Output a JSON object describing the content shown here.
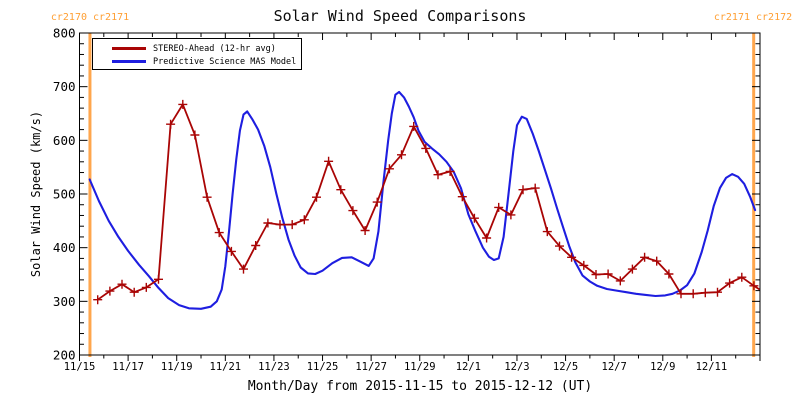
{
  "chart_data": {
    "type": "line",
    "title": "Solar Wind Speed Comparisons",
    "xlabel": "Month/Day from 2015-11-15 to 2015-12-12 (UT)",
    "ylabel": "Solar Wind Speed (km/s)",
    "ylim": [
      200,
      800
    ],
    "xlim_days": [
      0,
      28
    ],
    "x_epoch_day0": "2015-11-15 00:00 UT",
    "grid": false,
    "legend_position": "top-left-inside",
    "x_tick_days": [
      0,
      2,
      4,
      6,
      8,
      10,
      12,
      14,
      16,
      18,
      20,
      22,
      24,
      26
    ],
    "x_tick_labels": [
      "11/15",
      "11/17",
      "11/19",
      "11/21",
      "11/23",
      "11/25",
      "11/27",
      "11/29",
      "12/1",
      "12/3",
      "12/5",
      "12/7",
      "12/9",
      "12/11"
    ],
    "x_minor_step_days": 1,
    "y_ticks": [
      200,
      300,
      400,
      500,
      600,
      700,
      800
    ],
    "y_minor_step": 20,
    "colors": {
      "stereo": "#a90505",
      "model": "#1e1ee0",
      "boundary": "#ffa64d",
      "axis": "#000000"
    },
    "carrington_boundaries": [
      {
        "label": "cr2170 cr2171",
        "day": 0.43
      },
      {
        "label": "cr2171 cr2172",
        "day": 27.74
      }
    ],
    "series": [
      {
        "name": "STEREO-Ahead (12-hr avg)",
        "color": "#a90505",
        "marker": "plus",
        "x": [
          0.75,
          1.25,
          1.75,
          2.25,
          2.75,
          3.25,
          3.75,
          4.25,
          4.75,
          5.25,
          5.75,
          6.25,
          6.75,
          7.25,
          7.75,
          8.25,
          8.75,
          9.25,
          9.75,
          10.25,
          10.75,
          11.25,
          11.75,
          12.25,
          12.75,
          13.25,
          13.75,
          14.25,
          14.75,
          15.25,
          15.75,
          16.25,
          16.75,
          17.25,
          17.75,
          18.25,
          18.75,
          19.25,
          19.75,
          20.25,
          20.75,
          21.25,
          21.75,
          22.25,
          22.75,
          23.25,
          23.75,
          24.25,
          24.75,
          25.25,
          25.75,
          26.25,
          26.75,
          27.25,
          27.75
        ],
        "y": [
          303,
          319,
          332,
          317,
          326,
          341,
          630,
          667,
          610,
          494,
          428,
          393,
          360,
          404,
          446,
          443,
          443,
          452,
          494,
          561,
          508,
          469,
          432,
          485,
          547,
          573,
          626,
          585,
          536,
          542,
          495,
          455,
          418,
          475,
          461,
          508,
          511,
          430,
          403,
          382,
          367,
          350,
          351,
          338,
          360,
          382,
          375,
          351,
          314,
          314,
          316,
          317,
          334,
          345,
          329
        ],
        "line_tail": [
          [
            27.95,
            323
          ]
        ]
      },
      {
        "name": "Predictive Science MAS Model",
        "color": "#1e1ee0",
        "marker": "none",
        "x": [
          0.42,
          0.8,
          1.2,
          1.6,
          2.0,
          2.45,
          2.85,
          3.25,
          3.65,
          4.1,
          4.5,
          5.0,
          5.4,
          5.65,
          5.85,
          6.0,
          6.15,
          6.3,
          6.45,
          6.6,
          6.75,
          6.9,
          7.1,
          7.35,
          7.6,
          7.85,
          8.1,
          8.35,
          8.6,
          8.85,
          9.1,
          9.4,
          9.7,
          10.0,
          10.4,
          10.8,
          11.2,
          11.55,
          11.9,
          12.1,
          12.3,
          12.5,
          12.7,
          12.85,
          13.0,
          13.15,
          13.35,
          13.55,
          13.75,
          13.95,
          14.2,
          14.5,
          14.8,
          15.1,
          15.4,
          15.7,
          16.0,
          16.3,
          16.6,
          16.85,
          17.05,
          17.25,
          17.45,
          17.65,
          17.85,
          18.0,
          18.2,
          18.4,
          18.65,
          18.9,
          19.15,
          19.4,
          19.65,
          19.9,
          20.15,
          20.4,
          20.7,
          21.0,
          21.3,
          21.7,
          22.1,
          22.5,
          22.9,
          23.3,
          23.7,
          24.1,
          24.4,
          24.7,
          25.0,
          25.3,
          25.6,
          25.85,
          26.1,
          26.35,
          26.6,
          26.85,
          27.1,
          27.35,
          27.6,
          27.8
        ],
        "y": [
          527,
          487,
          450,
          420,
          394,
          368,
          347,
          325,
          306,
          293,
          287,
          286,
          290,
          300,
          322,
          365,
          430,
          500,
          565,
          618,
          648,
          654,
          640,
          620,
          590,
          550,
          500,
          455,
          415,
          385,
          363,
          352,
          351,
          357,
          371,
          381,
          382,
          374,
          366,
          380,
          430,
          520,
          600,
          650,
          685,
          690,
          680,
          663,
          643,
          618,
          597,
          585,
          574,
          560,
          541,
          510,
          462,
          430,
          400,
          383,
          377,
          380,
          420,
          500,
          580,
          628,
          644,
          640,
          612,
          580,
          545,
          510,
          473,
          438,
          403,
          373,
          348,
          337,
          329,
          323,
          320,
          317,
          314,
          312,
          310,
          311,
          314,
          320,
          330,
          352,
          392,
          432,
          478,
          511,
          530,
          537,
          532,
          519,
          494,
          470
        ],
        "line_tail": []
      }
    ]
  }
}
